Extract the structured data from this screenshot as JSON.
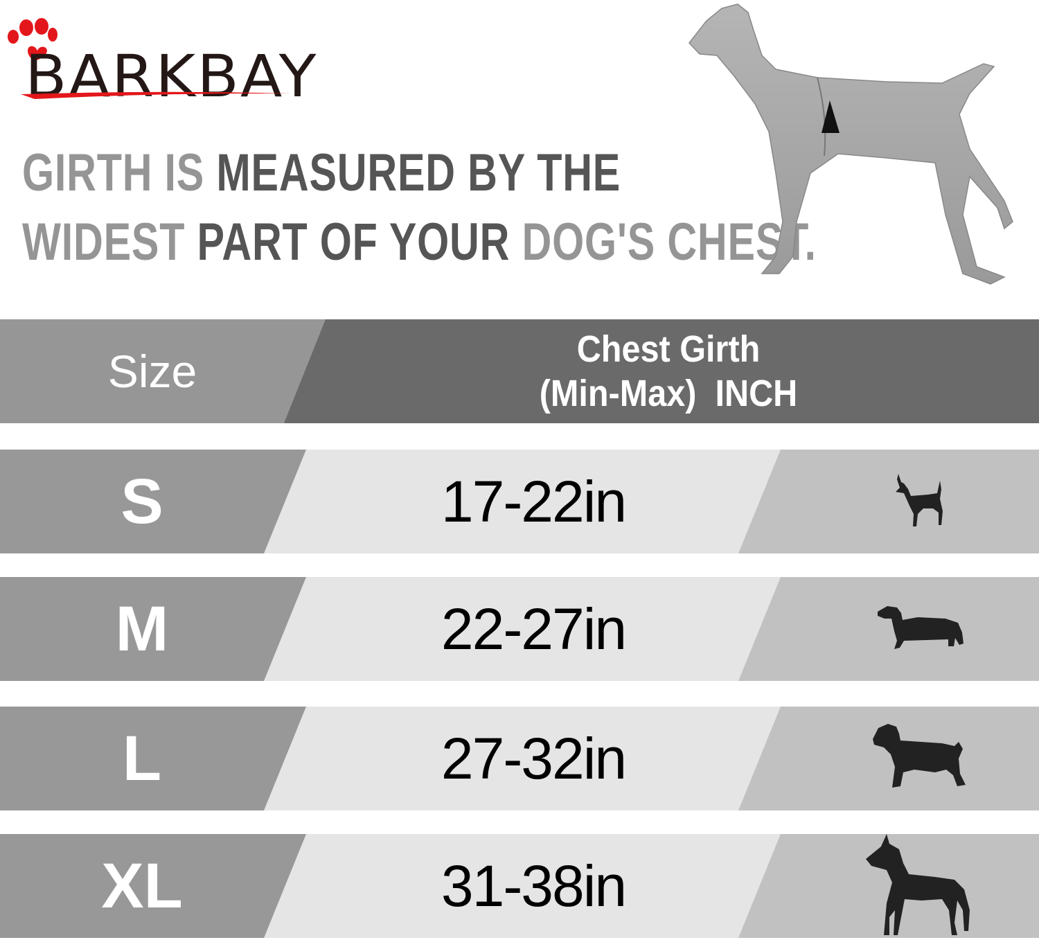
{
  "brand": {
    "name": "BARKBAY",
    "paw_color": "#e3171b",
    "text_color": "#231815"
  },
  "headline": {
    "line1": [
      {
        "text": "GIRTH IS ",
        "tone": "light"
      },
      {
        "text": "MEASURED BY THE",
        "tone": "dark"
      }
    ],
    "line2": [
      {
        "text": "WIDEST ",
        "tone": "light"
      },
      {
        "text": "PART OF YOUR ",
        "tone": "dark"
      },
      {
        "text": "DOG'S CHEST.",
        "tone": "light"
      }
    ]
  },
  "table": {
    "header": {
      "size": "Size",
      "girth_line1": "Chest Girth",
      "girth_line2": "(Min-Max)  INCH"
    },
    "rows": [
      {
        "size": "S",
        "range": "17-22in",
        "dog_icon": "chihuahua-icon"
      },
      {
        "size": "M",
        "range": "22-27in",
        "dog_icon": "dachshund-icon"
      },
      {
        "size": "L",
        "range": "27-32in",
        "dog_icon": "labrador-icon"
      },
      {
        "size": "XL",
        "range": "31-38in",
        "dog_icon": "great-dane-icon"
      }
    ],
    "colors": {
      "header_left": "#979697",
      "header_right": "#6b6a6b",
      "row_left": "#999899",
      "row_mid": "#e6e5e6",
      "row_right": "#c2c1c2"
    }
  }
}
